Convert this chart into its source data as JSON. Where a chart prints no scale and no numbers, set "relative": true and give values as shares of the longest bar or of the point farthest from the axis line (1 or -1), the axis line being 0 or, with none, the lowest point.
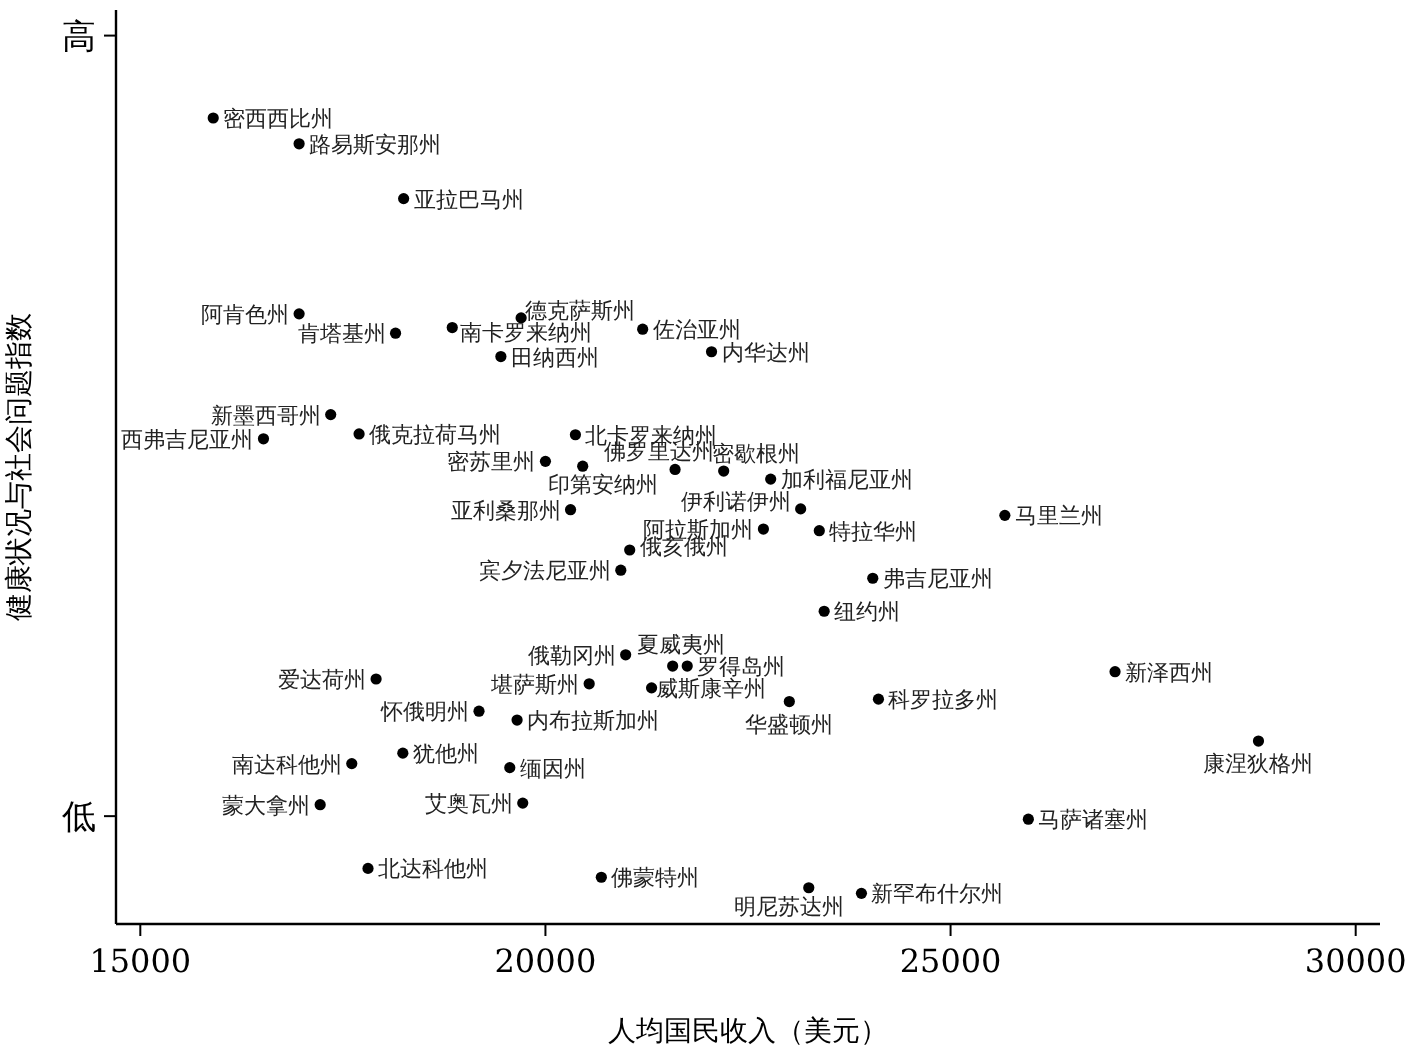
{
  "chart_data": {
    "type": "scatter",
    "relative": true,
    "xlabel": "人均国民收入（美元）",
    "ylabel": "健康状况与社会问题指数",
    "xlim": [
      14700,
      30300
    ],
    "xticks": [
      15000,
      20000,
      25000,
      30000
    ],
    "marker": "circle",
    "grid": false,
    "series": [
      {
        "color": "#000000",
        "x": [
          15900,
          16960,
          18250,
          16960,
          18150,
          18850,
          19700,
          21200,
          22050,
          19450,
          17350,
          16520,
          17700,
          20370,
          20000,
          20460,
          21600,
          22200,
          22780,
          20310,
          23150,
          22690,
          23380,
          25670,
          21040,
          20930,
          24040,
          23440,
          20990,
          21570,
          21750,
          20540,
          21310,
          23010,
          17910,
          19180,
          19650,
          17610,
          18240,
          19560,
          17220,
          19720,
          17810,
          20690,
          23250,
          23900,
          24110,
          27030,
          28800,
          25960
        ],
        "values": [
          1.0,
          0.968,
          0.9,
          0.757,
          0.733,
          0.74,
          0.752,
          0.738,
          0.71,
          0.704,
          0.632,
          0.602,
          0.608,
          0.607,
          0.574,
          0.568,
          0.564,
          0.562,
          0.552,
          0.514,
          0.515,
          0.49,
          0.488,
          0.507,
          0.464,
          0.439,
          0.429,
          0.388,
          0.334,
          0.32,
          0.32,
          0.298,
          0.293,
          0.276,
          0.304,
          0.264,
          0.253,
          0.199,
          0.212,
          0.194,
          0.148,
          0.15,
          0.069,
          0.058,
          0.045,
          0.038,
          0.279,
          0.313,
          0.227,
          0.13
        ]
      }
    ],
    "annotations": [
      {
        "text": "密西西比州",
        "x": 15900,
        "y": 1.0
      },
      {
        "text": "路易斯安那州",
        "x": 16960,
        "y": 0.968
      },
      {
        "text": "亚拉巴马州",
        "x": 18250,
        "y": 0.9
      },
      {
        "text": "阿肯色州",
        "x": 16960,
        "y": 0.757
      },
      {
        "text": "肯塔基州",
        "x": 18150,
        "y": 0.733
      },
      {
        "text": "南卡罗来纳州",
        "x": 18850,
        "y": 0.74
      },
      {
        "text": "德克萨斯州",
        "x": 19700,
        "y": 0.752
      },
      {
        "text": "佐治亚州",
        "x": 21200,
        "y": 0.738
      },
      {
        "text": "内华达州",
        "x": 22050,
        "y": 0.71
      },
      {
        "text": "田纳西州",
        "x": 19450,
        "y": 0.704
      },
      {
        "text": "新墨西哥州",
        "x": 17350,
        "y": 0.632
      },
      {
        "text": "西弗吉尼亚州",
        "x": 16520,
        "y": 0.602
      },
      {
        "text": "俄克拉荷马州",
        "x": 17700,
        "y": 0.608
      },
      {
        "text": "北卡罗来纳州",
        "x": 20370,
        "y": 0.607
      },
      {
        "text": "密苏里州",
        "x": 20000,
        "y": 0.574
      },
      {
        "text": "印第安纳州",
        "x": 20460,
        "y": 0.568
      },
      {
        "text": "佛罗里达州",
        "x": 21600,
        "y": 0.564
      },
      {
        "text": "密歇根州",
        "x": 22200,
        "y": 0.562
      },
      {
        "text": "加利福尼亚州",
        "x": 22780,
        "y": 0.552
      },
      {
        "text": "亚利桑那州",
        "x": 20310,
        "y": 0.514
      },
      {
        "text": "伊利诺伊州",
        "x": 23150,
        "y": 0.515
      },
      {
        "text": "阿拉斯加州",
        "x": 22690,
        "y": 0.49
      },
      {
        "text": "特拉华州",
        "x": 23380,
        "y": 0.488
      },
      {
        "text": "马里兰州",
        "x": 25670,
        "y": 0.507
      },
      {
        "text": "俄亥俄州",
        "x": 21040,
        "y": 0.464
      },
      {
        "text": "宾夕法尼亚州",
        "x": 20930,
        "y": 0.439
      },
      {
        "text": "弗吉尼亚州",
        "x": 24040,
        "y": 0.429
      },
      {
        "text": "纽约州",
        "x": 23440,
        "y": 0.388
      },
      {
        "text": "俄勒冈州",
        "x": 20990,
        "y": 0.334
      },
      {
        "text": "夏威夷州",
        "x": 21570,
        "y": 0.32
      },
      {
        "text": "罗得岛州",
        "x": 21750,
        "y": 0.32
      },
      {
        "text": "堪萨斯州",
        "x": 20540,
        "y": 0.298
      },
      {
        "text": "威斯康辛州",
        "x": 21310,
        "y": 0.293
      },
      {
        "text": "华盛顿州",
        "x": 23010,
        "y": 0.276
      },
      {
        "text": "爱达荷州",
        "x": 17910,
        "y": 0.304
      },
      {
        "text": "怀俄明州",
        "x": 19180,
        "y": 0.264
      },
      {
        "text": "内布拉斯加州",
        "x": 19650,
        "y": 0.253
      },
      {
        "text": "南达科他州",
        "x": 17610,
        "y": 0.199
      },
      {
        "text": "犹他州",
        "x": 18240,
        "y": 0.212
      },
      {
        "text": "缅因州",
        "x": 19560,
        "y": 0.194
      },
      {
        "text": "蒙大拿州",
        "x": 17220,
        "y": 0.148
      },
      {
        "text": "艾奥瓦州",
        "x": 19720,
        "y": 0.15
      },
      {
        "text": "北达科他州",
        "x": 17810,
        "y": 0.069
      },
      {
        "text": "佛蒙特州",
        "x": 20690,
        "y": 0.058
      },
      {
        "text": "明尼苏达州",
        "x": 23250,
        "y": 0.045
      },
      {
        "text": "新罕布什尔州",
        "x": 23900,
        "y": 0.038
      },
      {
        "text": "科罗拉多州",
        "x": 24110,
        "y": 0.279
      },
      {
        "text": "新泽西州",
        "x": 27030,
        "y": 0.313
      },
      {
        "text": "康涅狄格州",
        "x": 28800,
        "y": 0.227
      },
      {
        "text": "马萨诸塞州",
        "x": 25960,
        "y": 0.13
      },
      "高",
      "低"
    ]
  }
}
